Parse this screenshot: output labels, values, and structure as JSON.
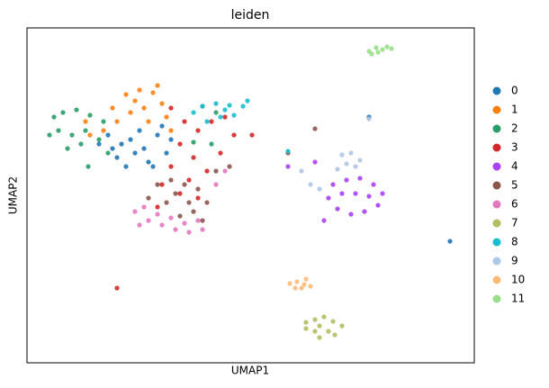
{
  "chart_data": {
    "type": "scatter",
    "title": "leiden",
    "x_label": "UMAP1",
    "y_label": "UMAP2",
    "xlim": [
      0,
      497
    ],
    "ylim": [
      0,
      372
    ],
    "legend": "right",
    "series": [
      {
        "name": "0",
        "color": "#1f77b4",
        "x": [
          90,
          105,
          120,
          135,
          100,
          115,
          130,
          145,
          155,
          110,
          125,
          95,
          140,
          160,
          80,
          150,
          470,
          380
        ],
        "y": [
          253,
          243,
          233,
          223,
          228,
          248,
          238,
          253,
          233,
          218,
          258,
          238,
          218,
          248,
          243,
          263,
          135,
          273
        ]
      },
      {
        "name": "1",
        "color": "#ff7f0e",
        "x": [
          110,
          125,
          140,
          150,
          130,
          115,
          100,
          85,
          70,
          135,
          155,
          120,
          95,
          65,
          145,
          160
        ],
        "y": [
          298,
          303,
          300,
          288,
          283,
          278,
          268,
          258,
          253,
          268,
          273,
          291,
          283,
          268,
          308,
          258
        ]
      },
      {
        "name": "2",
        "color": "#279e68",
        "x": [
          30,
          40,
          55,
          70,
          85,
          35,
          50,
          65,
          80,
          45,
          60,
          25,
          90,
          195,
          210,
          205,
          185,
          68
        ],
        "y": [
          273,
          278,
          281,
          275,
          268,
          258,
          253,
          258,
          248,
          238,
          243,
          253,
          233,
          285,
          278,
          243,
          245,
          218
        ]
      },
      {
        "name": "3",
        "color": "#d62728",
        "x": [
          160,
          175,
          190,
          205,
          220,
          170,
          185,
          160,
          200,
          150,
          170,
          190,
          145,
          230,
          250,
          215,
          100,
          180
        ],
        "y": [
          283,
          268,
          258,
          268,
          273,
          243,
          228,
          218,
          213,
          198,
          188,
          183,
          173,
          253,
          253,
          233,
          83,
          203
        ]
      },
      {
        "name": "4",
        "color": "#aa40fc",
        "x": [
          340,
          355,
          370,
          385,
          395,
          390,
          375,
          360,
          345,
          335,
          350,
          365,
          380,
          330,
          290,
          320
        ],
        "y": [
          198,
          203,
          205,
          198,
          188,
          175,
          168,
          165,
          171,
          183,
          188,
          188,
          185,
          158,
          218,
          223
        ]
      },
      {
        "name": "5",
        "color": "#8c564b",
        "x": [
          145,
          160,
          175,
          190,
          200,
          185,
          170,
          155,
          135,
          165,
          180,
          195,
          210,
          225,
          320,
          290
        ],
        "y": [
          198,
          203,
          198,
          193,
          178,
          168,
          163,
          178,
          183,
          188,
          178,
          158,
          213,
          218,
          260,
          233
        ]
      },
      {
        "name": "6",
        "color": "#e377c2",
        "x": [
          120,
          135,
          150,
          165,
          180,
          195,
          130,
          145,
          160,
          175,
          125,
          190,
          210,
          220
        ],
        "y": [
          168,
          158,
          153,
          148,
          145,
          148,
          173,
          165,
          161,
          155,
          153,
          158,
          198,
          213
        ]
      },
      {
        "name": "7",
        "color": "#b5bd61",
        "x": [
          310,
          320,
          330,
          340,
          350,
          335,
          320,
          310,
          325,
          342,
          325
        ],
        "y": [
          45,
          48,
          51,
          46,
          41,
          35,
          35,
          38,
          41,
          31,
          28
        ]
      },
      {
        "name": "8",
        "color": "#17becf",
        "x": [
          185,
          195,
          210,
          225,
          240,
          230,
          215,
          200,
          220,
          245,
          290
        ],
        "y": [
          278,
          285,
          288,
          286,
          285,
          275,
          273,
          268,
          281,
          291,
          235
        ]
      },
      {
        "name": "9",
        "color": "#aec7e8",
        "x": [
          350,
          360,
          370,
          355,
          345,
          365,
          315,
          325,
          305,
          380
        ],
        "y": [
          231,
          233,
          225,
          221,
          215,
          218,
          198,
          193,
          213,
          271
        ]
      },
      {
        "name": "10",
        "color": "#ffbb78",
        "x": [
          292,
          300,
          308,
          315,
          305,
          298,
          310
        ],
        "y": [
          88,
          90,
          87,
          85,
          83,
          83,
          93
        ]
      },
      {
        "name": "11",
        "color": "#98df8a",
        "x": [
          380,
          388,
          395,
          400,
          390,
          383,
          405
        ],
        "y": [
          346,
          350,
          348,
          351,
          345,
          343,
          349
        ]
      }
    ]
  }
}
